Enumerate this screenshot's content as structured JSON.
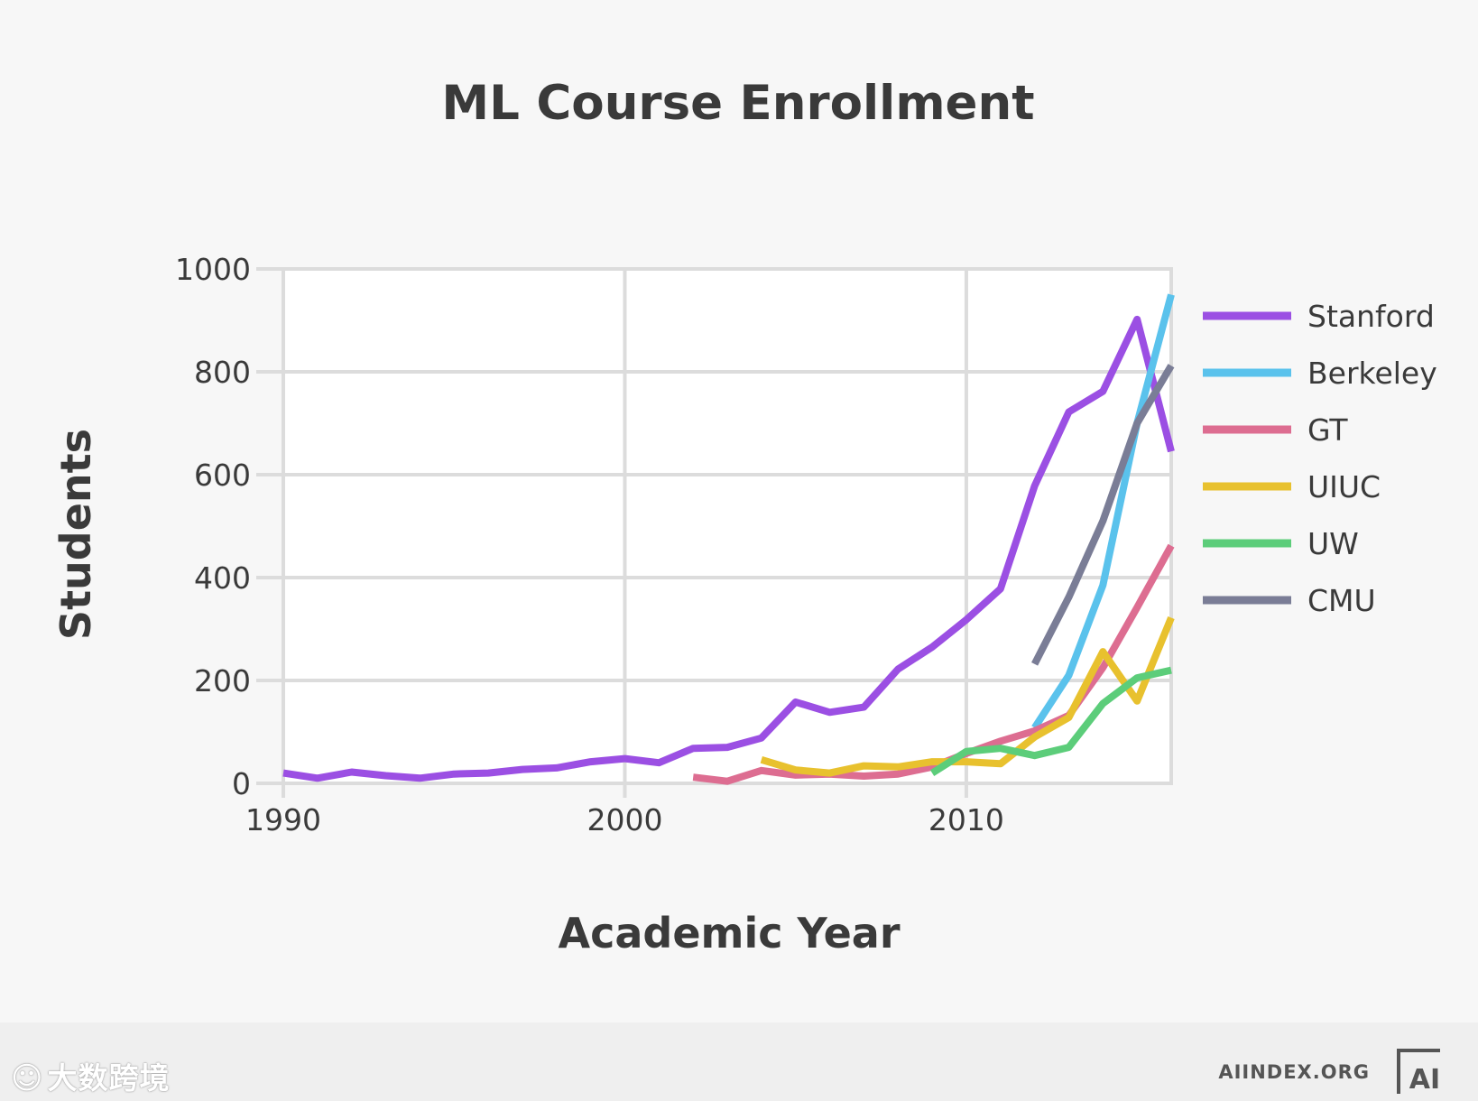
{
  "chart_data": {
    "type": "line",
    "title": "ML Course Enrollment",
    "xlabel": "Academic Year",
    "ylabel": "Students",
    "xlim": [
      1990,
      2016
    ],
    "ylim": [
      0,
      1000
    ],
    "x_ticks": [
      1990,
      2000,
      2010
    ],
    "y_ticks": [
      0,
      200,
      400,
      600,
      800,
      1000
    ],
    "grid": true,
    "legend_position": "right",
    "series": [
      {
        "name": "Stanford",
        "color": "#9b4fe3",
        "points": [
          [
            1990,
            20
          ],
          [
            1991,
            10
          ],
          [
            1992,
            22
          ],
          [
            1993,
            15
          ],
          [
            1994,
            10
          ],
          [
            1995,
            18
          ],
          [
            1996,
            20
          ],
          [
            1997,
            27
          ],
          [
            1998,
            30
          ],
          [
            1999,
            42
          ],
          [
            2000,
            48
          ],
          [
            2001,
            40
          ],
          [
            2002,
            68
          ],
          [
            2003,
            70
          ],
          [
            2004,
            88
          ],
          [
            2005,
            158
          ],
          [
            2006,
            138
          ],
          [
            2007,
            148
          ],
          [
            2008,
            222
          ],
          [
            2009,
            265
          ],
          [
            2010,
            318
          ],
          [
            2011,
            378
          ],
          [
            2012,
            578
          ],
          [
            2013,
            722
          ],
          [
            2014,
            762
          ],
          [
            2015,
            902
          ],
          [
            2016,
            645
          ]
        ]
      },
      {
        "name": "Berkeley",
        "color": "#5ac2ec",
        "points": [
          [
            2012,
            108
          ],
          [
            2013,
            210
          ],
          [
            2014,
            385
          ],
          [
            2015,
            700
          ],
          [
            2016,
            950
          ]
        ]
      },
      {
        "name": "GT",
        "color": "#dd6d91",
        "points": [
          [
            2002,
            12
          ],
          [
            2003,
            4
          ],
          [
            2004,
            25
          ],
          [
            2005,
            16
          ],
          [
            2006,
            18
          ],
          [
            2007,
            14
          ],
          [
            2008,
            18
          ],
          [
            2009,
            32
          ],
          [
            2010,
            58
          ],
          [
            2011,
            82
          ],
          [
            2012,
            102
          ],
          [
            2013,
            132
          ],
          [
            2014,
            225
          ],
          [
            2015,
            342
          ],
          [
            2016,
            462
          ]
        ]
      },
      {
        "name": "UIUC",
        "color": "#e8c12e",
        "points": [
          [
            2004,
            46
          ],
          [
            2005,
            26
          ],
          [
            2006,
            20
          ],
          [
            2007,
            34
          ],
          [
            2008,
            32
          ],
          [
            2009,
            42
          ],
          [
            2010,
            42
          ],
          [
            2011,
            38
          ],
          [
            2012,
            90
          ],
          [
            2013,
            128
          ],
          [
            2014,
            256
          ],
          [
            2015,
            160
          ],
          [
            2016,
            322
          ]
        ]
      },
      {
        "name": "UW",
        "color": "#5ccd7a",
        "points": [
          [
            2009,
            20
          ],
          [
            2010,
            62
          ],
          [
            2011,
            68
          ],
          [
            2012,
            54
          ],
          [
            2013,
            70
          ],
          [
            2014,
            155
          ],
          [
            2015,
            205
          ],
          [
            2016,
            220
          ]
        ]
      },
      {
        "name": "CMU",
        "color": "#7a7d96",
        "points": [
          [
            2012,
            232
          ],
          [
            2013,
            362
          ],
          [
            2014,
            510
          ],
          [
            2015,
            700
          ],
          [
            2016,
            812
          ]
        ]
      }
    ]
  },
  "footer": {
    "watermark_logo": "☺",
    "watermark_text": "大数跨境",
    "source": "AIINDEX.ORG",
    "ai_logo_text": "AI"
  }
}
